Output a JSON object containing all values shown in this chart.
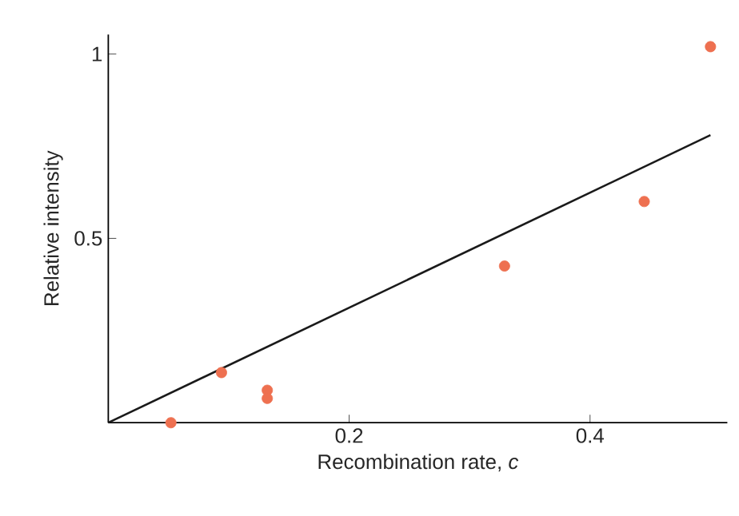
{
  "chart_data": {
    "type": "scatter",
    "xlabel": "Recombination rate, *c*",
    "ylabel": "Relative intensity",
    "series": [
      {
        "color": "#ee7050",
        "marker": "circle",
        "x": [
          0.052,
          0.094,
          0.132,
          0.132,
          0.329,
          0.445,
          0.5
        ],
        "values": [
          0.0,
          0.136,
          0.088,
          0.066,
          0.425,
          0.6,
          1.02
        ]
      },
      {
        "type": "line",
        "color": "#1a1a1a",
        "marker": "none",
        "line_style": "solid",
        "x": [
          0,
          0.5
        ],
        "values": [
          0,
          0.78
        ]
      }
    ],
    "xlim": [
      0,
      0.514
    ],
    "ylim": [
      0,
      1.053
    ],
    "xticks": [
      0.2,
      0.4
    ],
    "yticks": [
      0.5,
      1
    ]
  }
}
